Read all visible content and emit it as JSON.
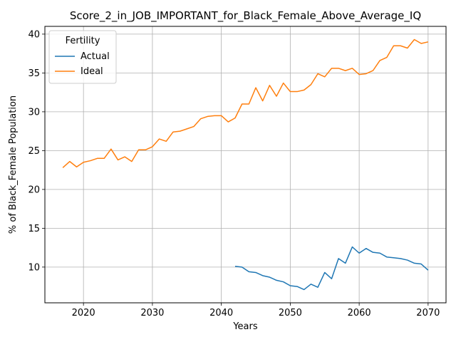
{
  "chart_data": {
    "type": "line",
    "title": "Score_2_in_JOB_IMPORTANT_for_Black_Female_Above_Average_IQ",
    "xlabel": "Years",
    "ylabel": "% of Black_Female Population",
    "xlim": [
      2014.4,
      2072.6
    ],
    "ylim": [
      5.4,
      41.0
    ],
    "xticks": [
      2020,
      2030,
      2040,
      2050,
      2060,
      2070
    ],
    "yticks": [
      10,
      15,
      20,
      25,
      30,
      35,
      40
    ],
    "grid": true,
    "legend": {
      "title": "Fertility",
      "position": "top-left"
    },
    "series": [
      {
        "name": "Actual",
        "color": "#1f77b4",
        "x": [
          2042,
          2043,
          2044,
          2045,
          2046,
          2047,
          2048,
          2049,
          2050,
          2051,
          2052,
          2053,
          2054,
          2055,
          2056,
          2057,
          2058,
          2059,
          2060,
          2061,
          2062,
          2063,
          2064,
          2065,
          2066,
          2067,
          2068,
          2069,
          2070
        ],
        "y": [
          10.1,
          10.0,
          9.4,
          9.3,
          8.9,
          8.7,
          8.3,
          8.1,
          7.6,
          7.5,
          7.1,
          7.8,
          7.4,
          9.3,
          8.5,
          11.1,
          10.5,
          12.6,
          11.8,
          12.4,
          11.9,
          11.8,
          11.3,
          11.2,
          11.1,
          10.9,
          10.5,
          10.4,
          9.6
        ]
      },
      {
        "name": "Ideal",
        "color": "#ff7f0e",
        "x": [
          2017,
          2018,
          2019,
          2020,
          2021,
          2022,
          2023,
          2024,
          2025,
          2026,
          2027,
          2028,
          2029,
          2030,
          2031,
          2032,
          2033,
          2034,
          2035,
          2036,
          2037,
          2038,
          2039,
          2040,
          2041,
          2042,
          2043,
          2044,
          2045,
          2046,
          2047,
          2048,
          2049,
          2050,
          2051,
          2052,
          2053,
          2054,
          2055,
          2056,
          2057,
          2058,
          2059,
          2060,
          2061,
          2062,
          2063,
          2064,
          2065,
          2066,
          2067,
          2068,
          2069,
          2070
        ],
        "y": [
          22.8,
          23.6,
          22.9,
          23.5,
          23.7,
          24.0,
          24.0,
          25.2,
          23.8,
          24.2,
          23.6,
          25.1,
          25.1,
          25.5,
          26.5,
          26.2,
          27.4,
          27.5,
          27.8,
          28.1,
          29.1,
          29.4,
          29.5,
          29.5,
          28.7,
          29.2,
          31.0,
          31.0,
          33.1,
          31.4,
          33.4,
          32.0,
          33.7,
          32.6,
          32.6,
          32.8,
          33.5,
          34.9,
          34.5,
          35.6,
          35.6,
          35.3,
          35.6,
          34.8,
          34.9,
          35.3,
          36.6,
          37.0,
          38.5,
          38.5,
          38.2,
          39.3,
          38.8,
          39.0
        ]
      }
    ]
  }
}
